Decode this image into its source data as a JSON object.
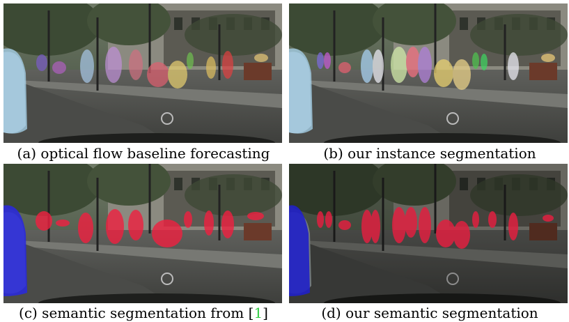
{
  "panels": [
    {
      "caption": "(a) optical flow baseline forecasting"
    },
    {
      "caption": "(b) our instance segmentation"
    },
    {
      "caption": "(c) semantic segmentation from [",
      "citation": "1",
      "caption_end": "]"
    },
    {
      "caption": "(d) our semantic segmentation"
    }
  ]
}
